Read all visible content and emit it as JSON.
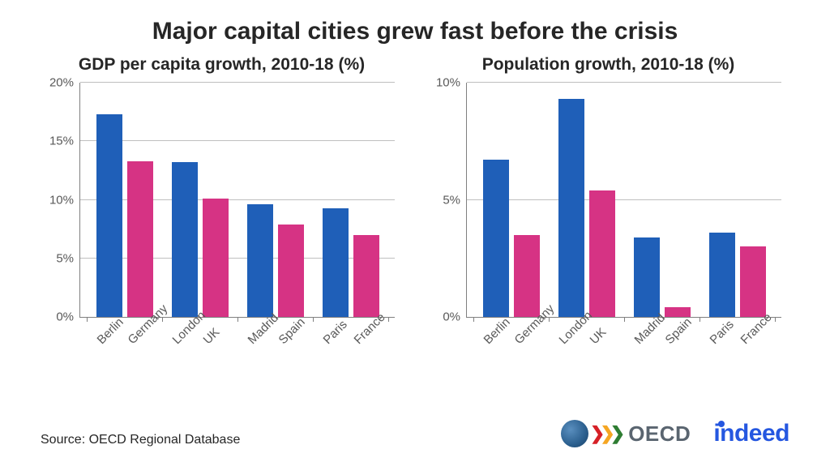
{
  "title": "Major capital cities grew fast before the crisis",
  "title_fontsize": 30,
  "title_color": "#262626",
  "background_color": "#ffffff",
  "source": "Source: OECD Regional Database",
  "source_fontsize": 16,
  "colors": {
    "city_bar": "#1f5fb8",
    "country_bar": "#d63384",
    "gridline": "#bfbfbf",
    "axis": "#808080",
    "tick_text": "#595959"
  },
  "tick_fontsize": 15,
  "xlabel_fontsize": 15,
  "xlabel_rotation": -45,
  "panels": [
    {
      "title": "GDP per capita growth, 2010-18 (%)",
      "title_fontsize": 21,
      "type": "grouped-bar",
      "ylim": [
        0,
        20
      ],
      "ytick_step": 5,
      "ytick_suffix": "%",
      "groups": [
        {
          "pair": [
            "Berlin",
            "Germany"
          ],
          "values": [
            17.3,
            13.3
          ]
        },
        {
          "pair": [
            "London",
            "UK"
          ],
          "values": [
            13.2,
            10.1
          ]
        },
        {
          "pair": [
            "Madrid",
            "Spain"
          ],
          "values": [
            9.6,
            7.9
          ]
        },
        {
          "pair": [
            "Paris",
            "France"
          ],
          "values": [
            9.3,
            7.0
          ]
        }
      ]
    },
    {
      "title": "Population growth, 2010-18 (%)",
      "title_fontsize": 21,
      "type": "grouped-bar",
      "ylim": [
        0,
        10
      ],
      "ytick_step": 5,
      "ytick_suffix": "%",
      "groups": [
        {
          "pair": [
            "Berlin",
            "Germany"
          ],
          "values": [
            6.7,
            3.5
          ]
        },
        {
          "pair": [
            "London",
            "UK"
          ],
          "values": [
            9.3,
            5.4
          ]
        },
        {
          "pair": [
            "Madrid",
            "Spain"
          ],
          "values": [
            3.4,
            0.4
          ]
        },
        {
          "pair": [
            "Paris",
            "France"
          ],
          "values": [
            3.6,
            3.0
          ]
        }
      ]
    }
  ],
  "logos": {
    "oecd": {
      "text": "OECD",
      "chevron_colors": [
        "#d62027",
        "#f5a623",
        "#2e7d32"
      ]
    },
    "indeed": {
      "text": "indeed",
      "color": "#2557e0",
      "fontsize": 30
    }
  }
}
